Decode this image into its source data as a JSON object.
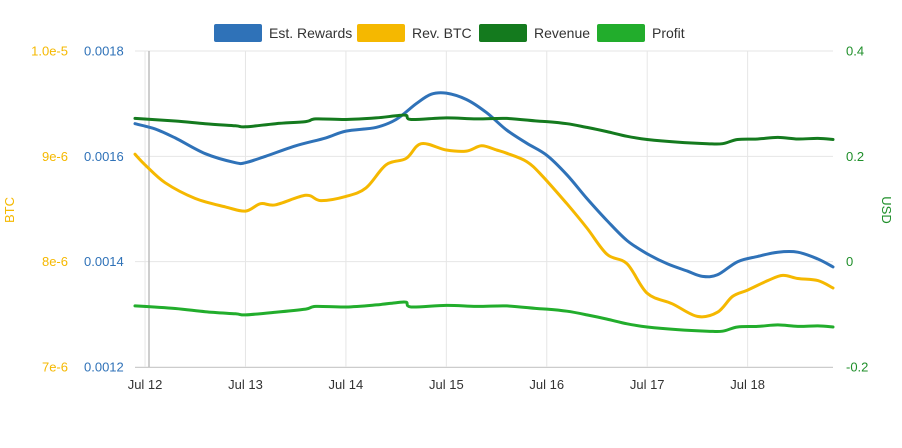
{
  "chart_data": {
    "type": "line",
    "x_categories": [
      "Jul 12",
      "Jul 13",
      "Jul 14",
      "Jul 15",
      "Jul 16",
      "Jul 17",
      "Jul 18"
    ],
    "x_range_days": [
      -0.1,
      6.85
    ],
    "axes": {
      "btc": {
        "label": "BTC",
        "color": "#f5b800",
        "range": [
          7e-06,
          1e-05
        ],
        "ticks": [
          {
            "v": 7e-06,
            "label": "7e-6"
          },
          {
            "v": 8e-06,
            "label": "8e-6"
          },
          {
            "v": 9e-06,
            "label": "9e-6"
          },
          {
            "v": 1e-05,
            "label": "1.0e-5"
          }
        ]
      },
      "rewards": {
        "label": "",
        "color": "#2f72b8",
        "range": [
          0.0012,
          0.0018
        ],
        "ticks": [
          {
            "v": 0.0012,
            "label": "0.0012"
          },
          {
            "v": 0.0014,
            "label": "0.0014"
          },
          {
            "v": 0.0016,
            "label": "0.0016"
          },
          {
            "v": 0.0018,
            "label": "0.0018"
          }
        ]
      },
      "usd": {
        "label": "USD",
        "color": "#1f8f2a",
        "range": [
          -0.2,
          0.4
        ],
        "ticks": [
          {
            "v": -0.2,
            "label": "-0.2"
          },
          {
            "v": 0,
            "label": "0"
          },
          {
            "v": 0.2,
            "label": "0.2"
          },
          {
            "v": 0.4,
            "label": "0.4"
          }
        ]
      }
    },
    "legend": {
      "placement": "top-center"
    },
    "series": [
      {
        "name": "Est. Rewards",
        "axis": "rewards",
        "color": "#2f72b8",
        "points": [
          [
            -0.1,
            0.001662
          ],
          [
            0.1,
            0.001652
          ],
          [
            0.3,
            0.001635
          ],
          [
            0.6,
            0.001605
          ],
          [
            0.9,
            0.001588
          ],
          [
            1.0,
            0.001588
          ],
          [
            1.2,
            0.0016
          ],
          [
            1.5,
            0.00162
          ],
          [
            1.8,
            0.001635
          ],
          [
            2.0,
            0.001648
          ],
          [
            2.3,
            0.001655
          ],
          [
            2.5,
            0.00167
          ],
          [
            2.7,
            0.0017
          ],
          [
            2.85,
            0.001718
          ],
          [
            3.0,
            0.00172
          ],
          [
            3.2,
            0.001708
          ],
          [
            3.4,
            0.001683
          ],
          [
            3.6,
            0.00165
          ],
          [
            3.8,
            0.001625
          ],
          [
            4.0,
            0.001602
          ],
          [
            4.2,
            0.001565
          ],
          [
            4.4,
            0.00152
          ],
          [
            4.6,
            0.001478
          ],
          [
            4.8,
            0.00144
          ],
          [
            5.0,
            0.001415
          ],
          [
            5.2,
            0.001396
          ],
          [
            5.4,
            0.001382
          ],
          [
            5.55,
            0.001372
          ],
          [
            5.7,
            0.001375
          ],
          [
            5.9,
            0.0014
          ],
          [
            6.1,
            0.00141
          ],
          [
            6.3,
            0.001418
          ],
          [
            6.5,
            0.001418
          ],
          [
            6.7,
            0.001405
          ],
          [
            6.85,
            0.00139
          ]
        ]
      },
      {
        "name": "Rev. BTC",
        "axis": "btc",
        "color": "#f5b800",
        "points": [
          [
            -0.1,
            9.02e-06
          ],
          [
            0.0,
            8.92e-06
          ],
          [
            0.2,
            8.75e-06
          ],
          [
            0.5,
            8.6e-06
          ],
          [
            0.8,
            8.52e-06
          ],
          [
            1.0,
            8.48e-06
          ],
          [
            1.15,
            8.55e-06
          ],
          [
            1.3,
            8.54e-06
          ],
          [
            1.6,
            8.63e-06
          ],
          [
            1.75,
            8.58e-06
          ],
          [
            2.0,
            8.62e-06
          ],
          [
            2.2,
            8.7e-06
          ],
          [
            2.4,
            8.92e-06
          ],
          [
            2.6,
            8.98e-06
          ],
          [
            2.75,
            9.12e-06
          ],
          [
            3.0,
            9.06e-06
          ],
          [
            3.2,
            9.05e-06
          ],
          [
            3.35,
            9.1e-06
          ],
          [
            3.5,
            9.06e-06
          ],
          [
            3.6,
            9.03e-06
          ],
          [
            3.8,
            8.95e-06
          ],
          [
            3.95,
            8.82e-06
          ],
          [
            4.2,
            8.55e-06
          ],
          [
            4.4,
            8.32e-06
          ],
          [
            4.6,
            8.07e-06
          ],
          [
            4.8,
            7.98e-06
          ],
          [
            5.0,
            7.7e-06
          ],
          [
            5.25,
            7.6e-06
          ],
          [
            5.5,
            7.48e-06
          ],
          [
            5.7,
            7.52e-06
          ],
          [
            5.85,
            7.67e-06
          ],
          [
            6.0,
            7.73e-06
          ],
          [
            6.2,
            7.82e-06
          ],
          [
            6.35,
            7.87e-06
          ],
          [
            6.5,
            7.84e-06
          ],
          [
            6.7,
            7.82e-06
          ],
          [
            6.85,
            7.75e-06
          ]
        ]
      },
      {
        "name": "Revenue",
        "axis": "usd",
        "color": "#147a1e",
        "points": [
          [
            -0.1,
            0.272
          ],
          [
            0.3,
            0.267
          ],
          [
            0.6,
            0.262
          ],
          [
            0.9,
            0.258
          ],
          [
            1.0,
            0.256
          ],
          [
            1.3,
            0.262
          ],
          [
            1.6,
            0.266
          ],
          [
            1.7,
            0.271
          ],
          [
            2.0,
            0.27
          ],
          [
            2.3,
            0.273
          ],
          [
            2.5,
            0.277
          ],
          [
            2.6,
            0.278
          ],
          [
            2.65,
            0.27
          ],
          [
            3.0,
            0.273
          ],
          [
            3.3,
            0.271
          ],
          [
            3.6,
            0.272
          ],
          [
            3.9,
            0.267
          ],
          [
            4.0,
            0.266
          ],
          [
            4.2,
            0.262
          ],
          [
            4.4,
            0.255
          ],
          [
            4.6,
            0.247
          ],
          [
            4.8,
            0.238
          ],
          [
            5.0,
            0.232
          ],
          [
            5.3,
            0.227
          ],
          [
            5.6,
            0.224
          ],
          [
            5.75,
            0.224
          ],
          [
            5.9,
            0.232
          ],
          [
            6.1,
            0.233
          ],
          [
            6.3,
            0.236
          ],
          [
            6.5,
            0.233
          ],
          [
            6.7,
            0.234
          ],
          [
            6.85,
            0.232
          ]
        ]
      },
      {
        "name": "Profit",
        "axis": "usd",
        "color": "#22ad2c",
        "points": [
          [
            -0.1,
            -0.084
          ],
          [
            0.3,
            -0.089
          ],
          [
            0.6,
            -0.095
          ],
          [
            0.9,
            -0.099
          ],
          [
            1.0,
            -0.101
          ],
          [
            1.3,
            -0.096
          ],
          [
            1.6,
            -0.09
          ],
          [
            1.7,
            -0.085
          ],
          [
            2.0,
            -0.086
          ],
          [
            2.3,
            -0.082
          ],
          [
            2.5,
            -0.078
          ],
          [
            2.6,
            -0.077
          ],
          [
            2.65,
            -0.086
          ],
          [
            3.0,
            -0.083
          ],
          [
            3.3,
            -0.085
          ],
          [
            3.6,
            -0.084
          ],
          [
            3.9,
            -0.089
          ],
          [
            4.0,
            -0.09
          ],
          [
            4.2,
            -0.094
          ],
          [
            4.4,
            -0.101
          ],
          [
            4.6,
            -0.109
          ],
          [
            4.8,
            -0.118
          ],
          [
            5.0,
            -0.124
          ],
          [
            5.3,
            -0.129
          ],
          [
            5.6,
            -0.132
          ],
          [
            5.75,
            -0.132
          ],
          [
            5.9,
            -0.124
          ],
          [
            6.1,
            -0.123
          ],
          [
            6.3,
            -0.12
          ],
          [
            6.5,
            -0.123
          ],
          [
            6.7,
            -0.122
          ],
          [
            6.85,
            -0.124
          ]
        ]
      }
    ]
  }
}
